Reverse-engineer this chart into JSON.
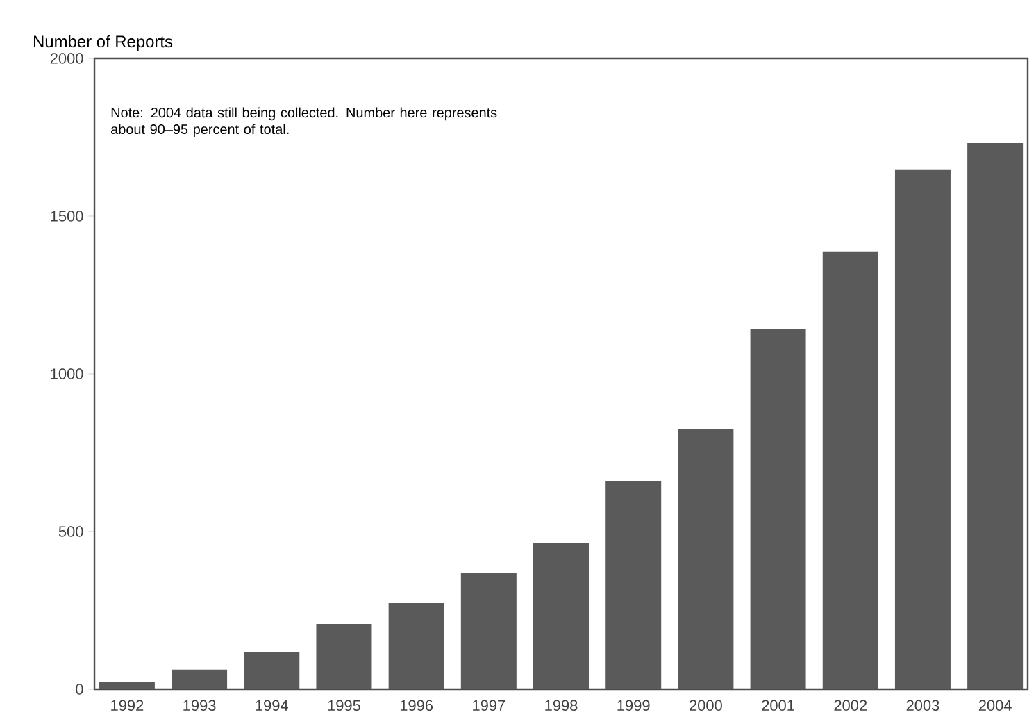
{
  "chart_data": {
    "type": "bar",
    "ylabel": "Number of Reports",
    "categories": [
      "1992",
      "1993",
      "1994",
      "1995",
      "1996",
      "1997",
      "1998",
      "1999",
      "2000",
      "2001",
      "2002",
      "2003",
      "2004"
    ],
    "values": [
      22,
      62,
      119,
      207,
      273,
      369,
      463,
      661,
      824,
      1141,
      1388,
      1648,
      1731
    ],
    "color": "#5a5a5a",
    "ylim": [
      0,
      2000
    ],
    "yticks": [
      0,
      500,
      1000,
      1500,
      2000
    ],
    "annotations": [
      "Note: 2004 data still being collected. Number here represents about 90–95 percent of total."
    ]
  }
}
